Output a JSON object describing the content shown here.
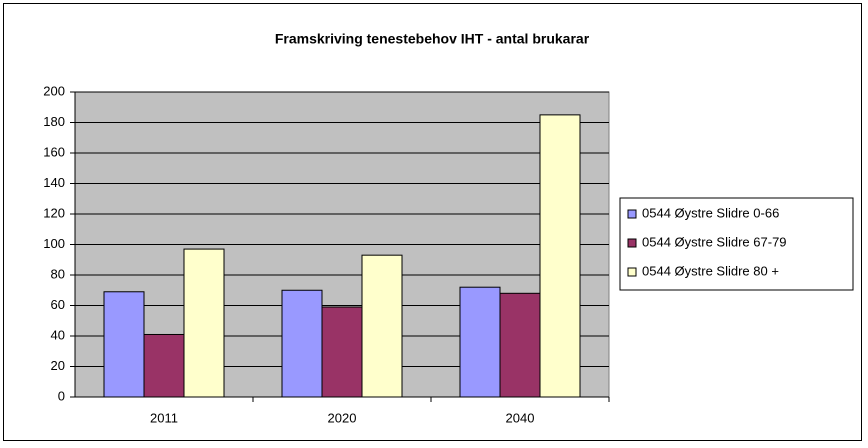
{
  "chart_data": {
    "type": "bar",
    "title": "Framskriving tenestebehov IHT - antal brukarar",
    "categories": [
      "2011",
      "2020",
      "2040"
    ],
    "series": [
      {
        "name": "0544 Øystre Slidre 0-66",
        "color": "#9999ff",
        "values": [
          69,
          70,
          72
        ]
      },
      {
        "name": "0544 Øystre Slidre 67-79",
        "color": "#993366",
        "values": [
          41,
          59,
          68
        ]
      },
      {
        "name": "0544 Øystre Slidre 80 +",
        "color": "#ffffcc",
        "values": [
          97,
          93,
          185
        ]
      }
    ],
    "ylim": [
      0,
      200
    ],
    "yticks": [
      0,
      20,
      40,
      60,
      80,
      100,
      120,
      140,
      160,
      180,
      200
    ],
    "grid": true,
    "legend": "right"
  }
}
